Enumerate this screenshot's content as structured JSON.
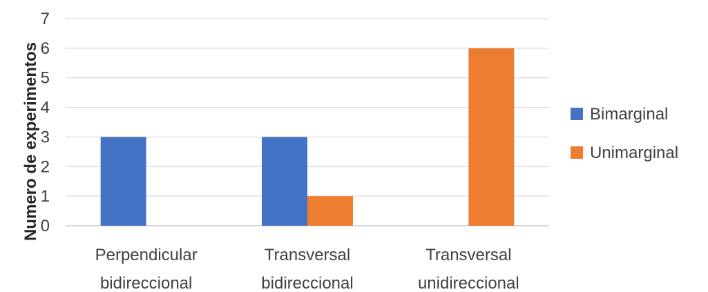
{
  "chart_data": {
    "type": "bar",
    "title": "",
    "xlabel": "",
    "ylabel": "Numero de experimentos",
    "ylim": [
      0,
      7
    ],
    "yticks": [
      0,
      1,
      2,
      3,
      4,
      5,
      6,
      7
    ],
    "grid": true,
    "legend_position": "right",
    "categories": [
      [
        "Perpendicular",
        "bidireccional"
      ],
      [
        "Transversal",
        "bidireccional"
      ],
      [
        "Transversal",
        "unidireccional"
      ]
    ],
    "series": [
      {
        "name": "Bimarginal",
        "color": "#4472C4",
        "values": [
          3,
          3,
          0
        ]
      },
      {
        "name": "Unimarginal",
        "color": "#ED7D31",
        "values": [
          0,
          1,
          6
        ]
      }
    ]
  }
}
